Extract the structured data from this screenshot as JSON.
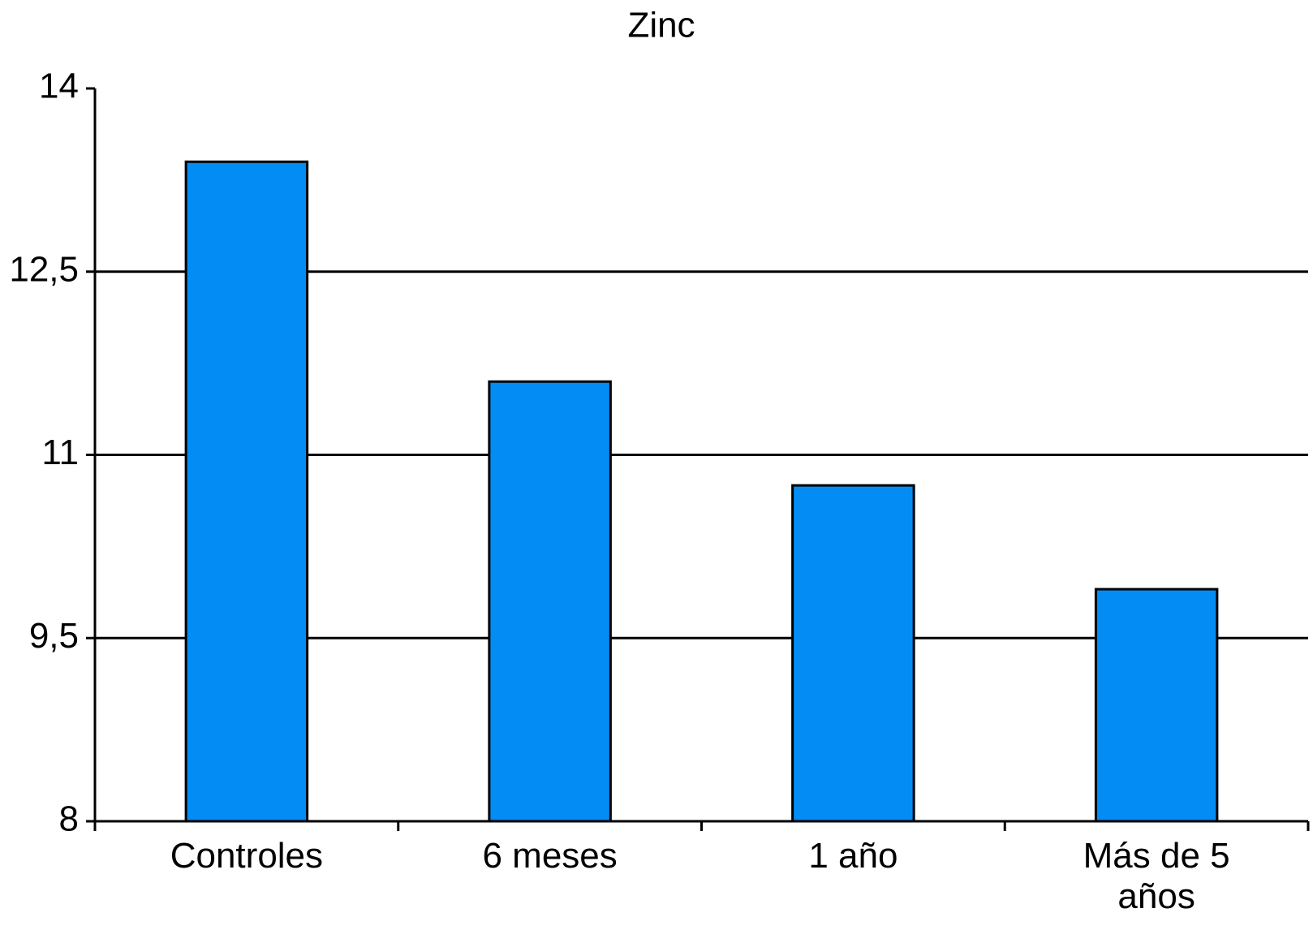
{
  "chart_data": {
    "type": "bar",
    "title": "Zinc",
    "categories": [
      "Controles",
      "6 meses",
      "1 año",
      "Más de 5 años"
    ],
    "values": [
      13.4,
      11.6,
      10.75,
      9.9
    ],
    "color": "#038cf4",
    "ylim": [
      8,
      14
    ],
    "yticks": [
      8,
      {
        "value": 9.5,
        "label": "9,5"
      },
      11,
      {
        "value": 12.5,
        "label": "12,5"
      },
      14
    ],
    "grid": true
  }
}
